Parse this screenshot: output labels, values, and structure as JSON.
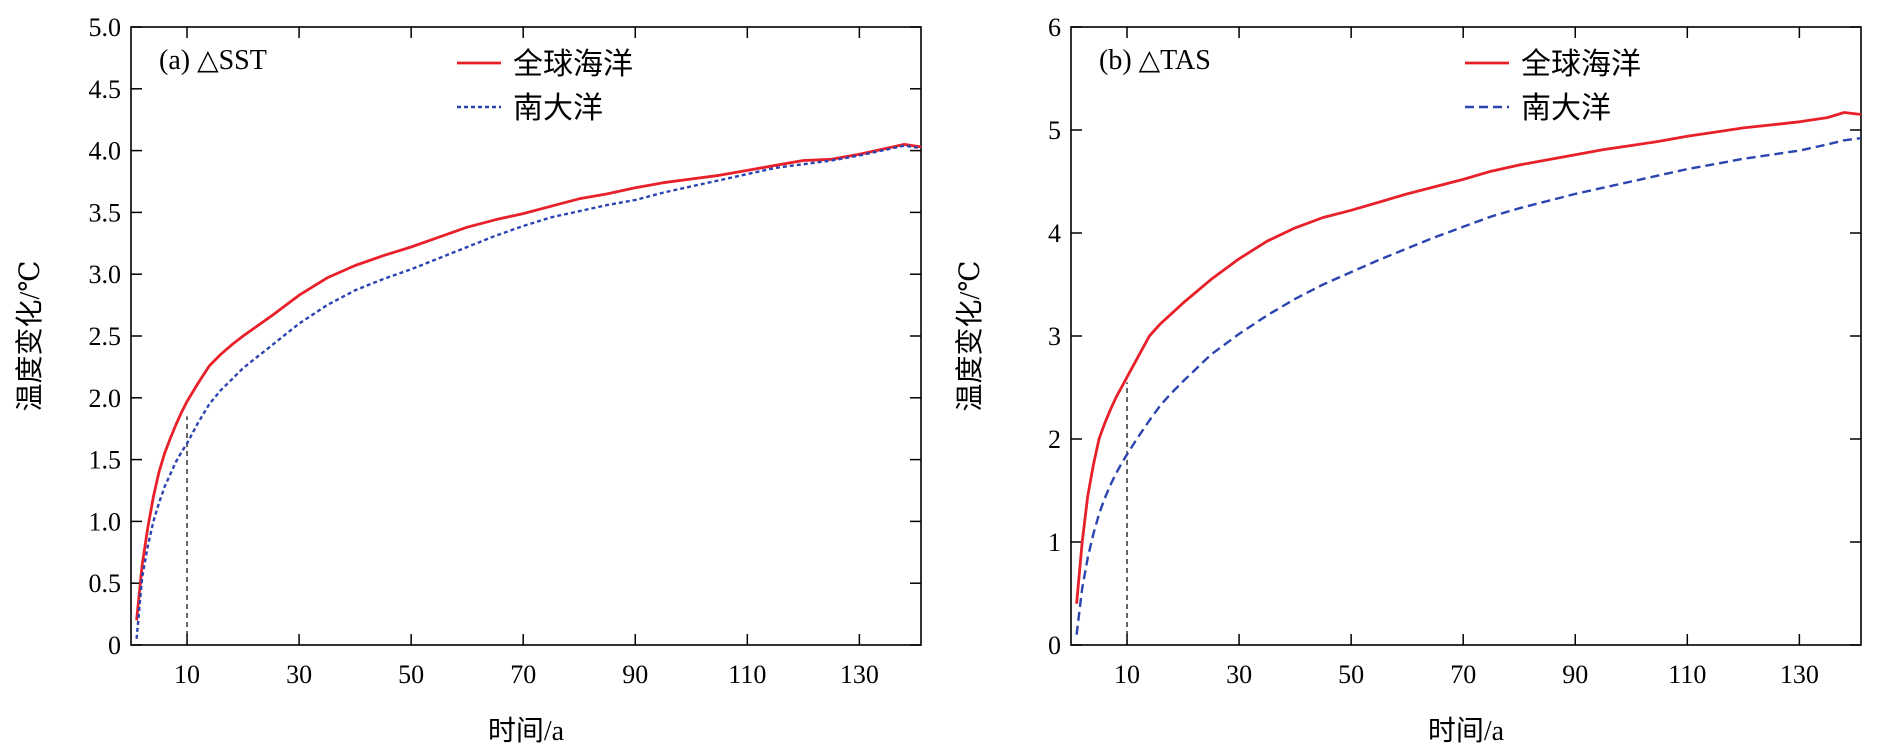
{
  "colors": {
    "global_ocean": "#e8202a",
    "southern_ocean": "#2b44b0",
    "reference_line": "#000000"
  },
  "chart_data": [
    {
      "type": "line",
      "panel_label": "(a) △SST",
      "xlabel": "时间/a",
      "ylabel": "温度变化/℃",
      "xlim": [
        0,
        141
      ],
      "ylim": [
        0,
        5.0
      ],
      "x_ticks": [
        10,
        30,
        50,
        70,
        90,
        110,
        130
      ],
      "y_ticks": [
        "0",
        "0.5",
        "1.0",
        "1.5",
        "2.0",
        "2.5",
        "3.0",
        "3.5",
        "4.0",
        "4.5",
        "5.0"
      ],
      "y_tick_values": [
        0,
        0.5,
        1.0,
        1.5,
        2.0,
        2.5,
        3.0,
        3.5,
        4.0,
        4.5,
        5.0
      ],
      "grid": false,
      "legend_position": "top-center",
      "reference_line": {
        "x": 10,
        "y": 1.85
      },
      "series": [
        {
          "name": "全球海洋",
          "style": "solid",
          "x": [
            1,
            2,
            3,
            4,
            5,
            6,
            7,
            8,
            9,
            10,
            12,
            14,
            16,
            18,
            20,
            25,
            30,
            35,
            40,
            45,
            50,
            55,
            60,
            65,
            70,
            75,
            80,
            85,
            90,
            95,
            100,
            105,
            110,
            115,
            120,
            125,
            130,
            135,
            138,
            141
          ],
          "y": [
            0.2,
            0.65,
            0.95,
            1.2,
            1.4,
            1.55,
            1.67,
            1.78,
            1.88,
            1.97,
            2.12,
            2.26,
            2.35,
            2.43,
            2.5,
            2.66,
            2.83,
            2.97,
            3.07,
            3.15,
            3.22,
            3.3,
            3.38,
            3.44,
            3.49,
            3.55,
            3.61,
            3.65,
            3.7,
            3.74,
            3.77,
            3.8,
            3.84,
            3.88,
            3.92,
            3.93,
            3.97,
            4.02,
            4.05,
            4.03
          ]
        },
        {
          "name": "南大洋",
          "style": "dotted",
          "x": [
            1,
            2,
            3,
            4,
            5,
            6,
            7,
            8,
            9,
            10,
            12,
            14,
            16,
            18,
            20,
            25,
            30,
            35,
            40,
            45,
            50,
            55,
            60,
            65,
            70,
            75,
            80,
            85,
            90,
            95,
            100,
            105,
            110,
            115,
            120,
            125,
            130,
            135,
            138,
            141
          ],
          "y": [
            0.05,
            0.55,
            0.8,
            1.0,
            1.15,
            1.28,
            1.38,
            1.48,
            1.56,
            1.63,
            1.8,
            1.95,
            2.06,
            2.15,
            2.24,
            2.42,
            2.6,
            2.75,
            2.87,
            2.96,
            3.04,
            3.13,
            3.22,
            3.31,
            3.39,
            3.46,
            3.51,
            3.56,
            3.6,
            3.66,
            3.71,
            3.76,
            3.81,
            3.86,
            3.89,
            3.92,
            3.96,
            4.01,
            4.04,
            4.02
          ]
        }
      ]
    },
    {
      "type": "line",
      "panel_label": "(b) △TAS",
      "xlabel": "时间/a",
      "ylabel": "温度变化/℃",
      "xlim": [
        0,
        141
      ],
      "ylim": [
        0,
        6
      ],
      "x_ticks": [
        10,
        30,
        50,
        70,
        90,
        110,
        130
      ],
      "y_ticks": [
        "0",
        "1",
        "2",
        "3",
        "4",
        "5",
        "6"
      ],
      "y_tick_values": [
        0,
        1,
        2,
        3,
        4,
        5,
        6
      ],
      "grid": false,
      "legend_position": "top-center",
      "reference_line": {
        "x": 10,
        "y": 2.55
      },
      "series": [
        {
          "name": "全球海洋",
          "style": "solid",
          "x": [
            1,
            2,
            3,
            4,
            5,
            6,
            7,
            8,
            9,
            10,
            12,
            14,
            16,
            18,
            20,
            25,
            30,
            35,
            40,
            45,
            50,
            55,
            60,
            65,
            70,
            75,
            80,
            85,
            90,
            95,
            100,
            105,
            110,
            115,
            120,
            125,
            130,
            135,
            138,
            141
          ],
          "y": [
            0.4,
            1.0,
            1.45,
            1.75,
            2.0,
            2.15,
            2.28,
            2.4,
            2.5,
            2.6,
            2.8,
            3.0,
            3.12,
            3.22,
            3.32,
            3.55,
            3.75,
            3.92,
            4.05,
            4.15,
            4.22,
            4.3,
            4.38,
            4.45,
            4.52,
            4.6,
            4.66,
            4.71,
            4.76,
            4.81,
            4.85,
            4.89,
            4.94,
            4.98,
            5.02,
            5.05,
            5.08,
            5.12,
            5.17,
            5.15
          ]
        },
        {
          "name": "南大洋",
          "style": "dashed",
          "x": [
            1,
            2,
            3,
            4,
            5,
            6,
            7,
            8,
            9,
            10,
            12,
            14,
            16,
            18,
            20,
            25,
            30,
            35,
            40,
            45,
            50,
            55,
            60,
            65,
            70,
            75,
            80,
            85,
            90,
            95,
            100,
            105,
            110,
            115,
            120,
            125,
            130,
            135,
            138,
            141
          ],
          "y": [
            0.1,
            0.55,
            0.85,
            1.08,
            1.27,
            1.42,
            1.55,
            1.66,
            1.76,
            1.85,
            2.02,
            2.18,
            2.33,
            2.45,
            2.56,
            2.82,
            3.02,
            3.2,
            3.36,
            3.5,
            3.62,
            3.74,
            3.85,
            3.96,
            4.06,
            4.16,
            4.24,
            4.31,
            4.38,
            4.44,
            4.5,
            4.56,
            4.62,
            4.67,
            4.72,
            4.76,
            4.8,
            4.86,
            4.9,
            4.92
          ]
        }
      ]
    }
  ]
}
